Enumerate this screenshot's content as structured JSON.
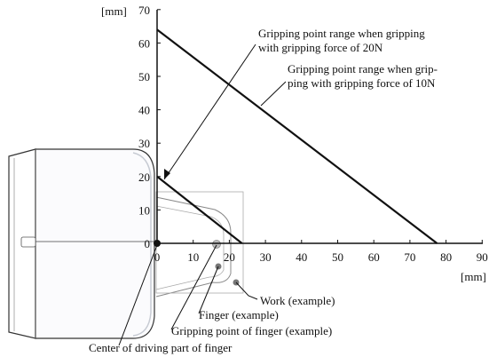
{
  "chart_data": {
    "type": "line",
    "title": "",
    "xlabel": "[mm]",
    "ylabel": "[mm]",
    "xlim": [
      0,
      90
    ],
    "ylim": [
      0,
      70
    ],
    "xticks": [
      "0",
      "10",
      "20",
      "30",
      "40",
      "50",
      "60",
      "70",
      "80",
      "90"
    ],
    "yticks": [
      "0",
      "10",
      "20",
      "30",
      "40",
      "50",
      "60",
      "70"
    ],
    "grid": false,
    "series": [
      {
        "x": [
          0,
          23.5
        ],
        "y": [
          20,
          0
        ]
      },
      {
        "x": [
          0,
          77.5
        ],
        "y": [
          64,
          0
        ]
      }
    ],
    "annotations": {
      "force20_line1": "Gripping point range when gripping",
      "force20_line2": "with gripping force of 20N",
      "force10_line1": "Gripping point range when grip-",
      "force10_line2": "ping with gripping force of 10N",
      "work": "Work (example)",
      "finger": "Finger (example)",
      "gripping_point": "Gripping point of finger (example)",
      "center": "Center of driving part of finger"
    }
  }
}
